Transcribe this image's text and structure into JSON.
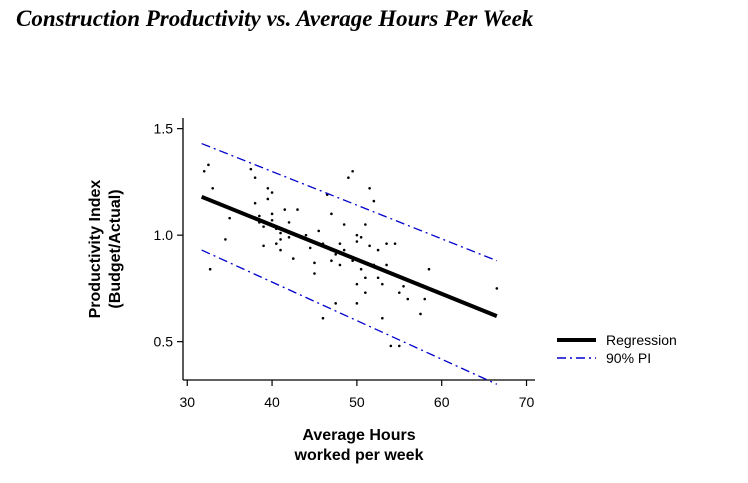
{
  "title": "Construction Productivity vs. Average Hours Per Week",
  "chart_data": {
    "type": "scatter",
    "title": "Construction Productivity vs. Average Hours Per Week",
    "xlabel": [
      "Average Hours",
      "worked per week"
    ],
    "ylabel": [
      "Productivity Index",
      "(Budget/Actual)"
    ],
    "xlim": [
      29.5,
      71
    ],
    "ylim": [
      0.32,
      1.55
    ],
    "xticks": [
      30,
      40,
      50,
      60,
      70
    ],
    "yticks": [
      0.5,
      1.0,
      1.5
    ],
    "ytick_labels": [
      "0.5",
      "1.0",
      "1.5"
    ],
    "grid": false,
    "legend_position": "right",
    "series": [
      {
        "name": "Regression",
        "style": "solid-thick",
        "color": "#000000",
        "x": [
          31.7,
          66.5
        ],
        "y": [
          1.18,
          0.62
        ]
      },
      {
        "name": "90% PI",
        "style": "dash-dot",
        "color": "#0000cc",
        "upper": {
          "x": [
            31.7,
            66.5
          ],
          "y": [
            1.43,
            0.88
          ]
        },
        "lower": {
          "x": [
            31.7,
            66.5
          ],
          "y": [
            0.93,
            0.3
          ]
        }
      }
    ],
    "points": [
      [
        32.0,
        1.3
      ],
      [
        32.5,
        1.33
      ],
      [
        33.0,
        1.22
      ],
      [
        32.7,
        0.84
      ],
      [
        34.5,
        0.98
      ],
      [
        35.0,
        1.08
      ],
      [
        36.5,
        1.1
      ],
      [
        37.5,
        1.31
      ],
      [
        38.0,
        1.27
      ],
      [
        38.0,
        1.15
      ],
      [
        38.5,
        1.09
      ],
      [
        38.5,
        1.06
      ],
      [
        39.0,
        1.04
      ],
      [
        39.0,
        0.95
      ],
      [
        39.5,
        1.22
      ],
      [
        39.5,
        1.17
      ],
      [
        40.0,
        1.2
      ],
      [
        40.0,
        1.1
      ],
      [
        40.0,
        1.07
      ],
      [
        40.5,
        1.03
      ],
      [
        40.5,
        0.96
      ],
      [
        41.0,
        1.01
      ],
      [
        41.0,
        0.98
      ],
      [
        41.0,
        0.93
      ],
      [
        41.5,
        1.12
      ],
      [
        42.0,
        1.06
      ],
      [
        42.0,
        0.99
      ],
      [
        42.5,
        0.89
      ],
      [
        43.0,
        1.12
      ],
      [
        44.0,
        1.0
      ],
      [
        44.5,
        0.94
      ],
      [
        45.0,
        0.87
      ],
      [
        45.0,
        0.82
      ],
      [
        45.5,
        1.02
      ],
      [
        46.0,
        0.96
      ],
      [
        46.0,
        0.61
      ],
      [
        46.5,
        1.19
      ],
      [
        47.0,
        1.1
      ],
      [
        47.0,
        0.93
      ],
      [
        47.0,
        0.88
      ],
      [
        47.5,
        0.91
      ],
      [
        47.5,
        0.68
      ],
      [
        48.0,
        0.96
      ],
      [
        48.0,
        0.86
      ],
      [
        48.5,
        1.05
      ],
      [
        48.5,
        0.93
      ],
      [
        49.0,
        1.27
      ],
      [
        49.0,
        0.9
      ],
      [
        49.5,
        1.3
      ],
      [
        49.5,
        0.88
      ],
      [
        50.0,
        1.0
      ],
      [
        50.0,
        0.97
      ],
      [
        50.0,
        0.77
      ],
      [
        50.0,
        0.68
      ],
      [
        50.5,
        0.99
      ],
      [
        50.5,
        0.84
      ],
      [
        51.0,
        1.05
      ],
      [
        51.0,
        0.8
      ],
      [
        51.0,
        0.73
      ],
      [
        51.5,
        1.22
      ],
      [
        51.5,
        0.95
      ],
      [
        52.0,
        1.16
      ],
      [
        52.0,
        0.86
      ],
      [
        52.5,
        0.93
      ],
      [
        52.5,
        0.8
      ],
      [
        53.0,
        0.77
      ],
      [
        53.0,
        0.61
      ],
      [
        53.5,
        0.96
      ],
      [
        53.5,
        0.86
      ],
      [
        54.0,
        0.82
      ],
      [
        54.0,
        0.48
      ],
      [
        54.5,
        0.96
      ],
      [
        55.0,
        0.73
      ],
      [
        55.0,
        0.48
      ],
      [
        55.5,
        0.76
      ],
      [
        56.0,
        0.7
      ],
      [
        57.5,
        0.63
      ],
      [
        58.0,
        0.7
      ],
      [
        58.5,
        0.84
      ],
      [
        66.5,
        0.75
      ]
    ]
  },
  "legend": {
    "items": [
      {
        "label": "Regression",
        "style": "solid-thick",
        "color": "#000000"
      },
      {
        "label": "90% PI",
        "style": "dash-dot",
        "color": "#0000cc"
      }
    ]
  }
}
